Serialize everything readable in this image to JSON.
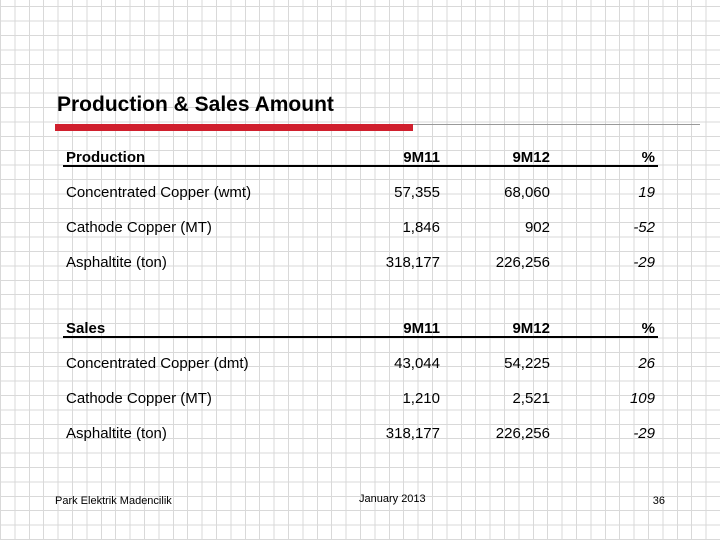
{
  "header": {
    "title": "Production & Sales Amount"
  },
  "tables": [
    {
      "columns": [
        "Production",
        "9M11",
        "9M12",
        "%"
      ],
      "rows": [
        [
          "Concentrated Copper (wmt)",
          "57,355",
          "68,060",
          "19"
        ],
        [
          "Cathode Copper (MT)",
          "1,846",
          "902",
          "-52"
        ],
        [
          "Asphaltite (ton)",
          "318,177",
          "226,256",
          "-29"
        ]
      ]
    },
    {
      "columns": [
        "Sales",
        "9M11",
        "9M12",
        "%"
      ],
      "rows": [
        [
          "Concentrated Copper (dmt)",
          "43,044",
          "54,225",
          "26"
        ],
        [
          "Cathode Copper (MT)",
          "1,210",
          "2,521",
          "109"
        ],
        [
          "Asphaltite (ton)",
          "318,177",
          "226,256",
          "-29"
        ]
      ]
    }
  ],
  "footer": {
    "left": "Park Elektrik Madencilik",
    "center": "January 2013",
    "page": "36"
  }
}
